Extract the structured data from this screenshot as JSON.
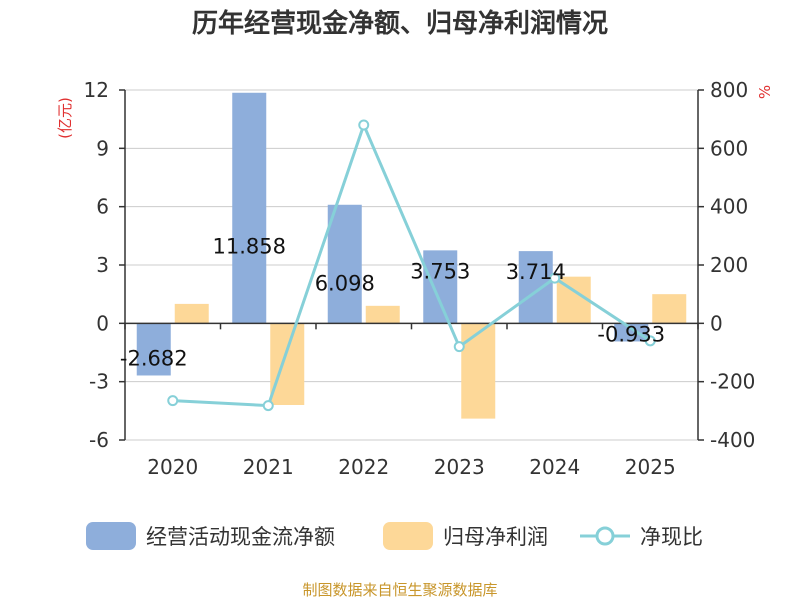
{
  "chart_data": {
    "type": "bar",
    "title": "历年经营现金净额、归母净利润情况",
    "categories": [
      "2020",
      "2021",
      "2022",
      "2023",
      "2024",
      "2025"
    ],
    "series": [
      {
        "name": "经营活动现金流净额",
        "type": "bar",
        "axis": "left",
        "color": "#8eaedb",
        "values": [
          -2.682,
          11.858,
          6.098,
          3.753,
          3.714,
          -0.933
        ],
        "labels": [
          "-2.682",
          "11.858",
          "6.098",
          "3.753",
          "3.714",
          "-0.933"
        ]
      },
      {
        "name": "归母净利润",
        "type": "bar",
        "axis": "left",
        "color": "#fdd898",
        "values": [
          1.0,
          -4.2,
          0.9,
          -4.9,
          2.4,
          1.5
        ]
      },
      {
        "name": "净现比",
        "type": "line",
        "axis": "right",
        "color": "#86d0d8",
        "values": [
          -265,
          -282,
          680,
          -80,
          155,
          -60
        ]
      }
    ],
    "left_axis": {
      "unit": "(亿元)",
      "min": -6,
      "max": 12,
      "ticks": [
        "12",
        "9",
        "6",
        "3",
        "0",
        "-3",
        "-6"
      ]
    },
    "right_axis": {
      "unit": "%",
      "min": -400,
      "max": 800,
      "ticks": [
        "800",
        "600",
        "400",
        "200",
        "0",
        "-200",
        "-400"
      ]
    },
    "legend_position": "bottom",
    "source": "制图数据来自恒生聚源数据库"
  }
}
